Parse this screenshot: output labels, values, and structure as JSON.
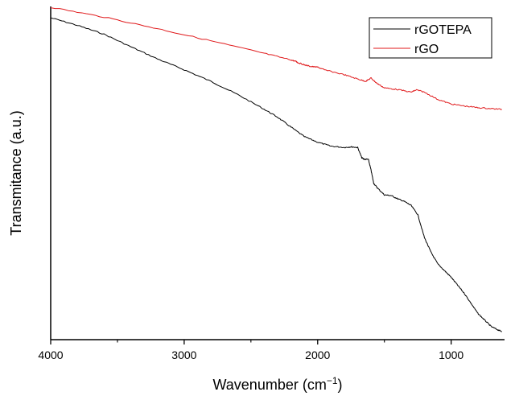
{
  "chart_data": {
    "type": "line",
    "title": "",
    "xlabel_text": "Wavenumber (cm",
    "xlabel_sup": "−1",
    "xlabel_close": ")",
    "ylabel": "Transmitance (a.u.)",
    "xlim": [
      4000,
      600
    ],
    "x_reversed": true,
    "y_ticks_shown": false,
    "ylim": [
      0,
      1
    ],
    "x_ticks": [
      {
        "value": 4000,
        "label": "4000"
      },
      {
        "value": 3000,
        "label": "3000"
      },
      {
        "value": 2000,
        "label": "2000"
      },
      {
        "value": 1000,
        "label": "1000"
      }
    ],
    "x_minor_ticks": [
      3500,
      2500,
      1500
    ],
    "grid": false,
    "legend": {
      "placement": "top-right"
    },
    "series": [
      {
        "name": "rGOTEPA",
        "color": "#000000",
        "points": [
          [
            4000,
            0.968
          ],
          [
            3800,
            0.945
          ],
          [
            3600,
            0.918
          ],
          [
            3400,
            0.88
          ],
          [
            3200,
            0.843
          ],
          [
            3000,
            0.81
          ],
          [
            2800,
            0.775
          ],
          [
            2600,
            0.735
          ],
          [
            2400,
            0.69
          ],
          [
            2300,
            0.666
          ],
          [
            2200,
            0.636
          ],
          [
            2100,
            0.607
          ],
          [
            2000,
            0.59
          ],
          [
            1900,
            0.578
          ],
          [
            1800,
            0.574
          ],
          [
            1750,
            0.576
          ],
          [
            1700,
            0.574
          ],
          [
            1670,
            0.543
          ],
          [
            1650,
            0.538
          ],
          [
            1620,
            0.538
          ],
          [
            1600,
            0.505
          ],
          [
            1580,
            0.465
          ],
          [
            1550,
            0.45
          ],
          [
            1500,
            0.43
          ],
          [
            1450,
            0.428
          ],
          [
            1400,
            0.418
          ],
          [
            1350,
            0.41
          ],
          [
            1300,
            0.398
          ],
          [
            1250,
            0.37
          ],
          [
            1200,
            0.3
          ],
          [
            1150,
            0.255
          ],
          [
            1100,
            0.22
          ],
          [
            1050,
            0.2
          ],
          [
            1000,
            0.18
          ],
          [
            950,
            0.155
          ],
          [
            900,
            0.13
          ],
          [
            850,
            0.1
          ],
          [
            800,
            0.07
          ],
          [
            750,
            0.05
          ],
          [
            700,
            0.03
          ],
          [
            650,
            0.02
          ],
          [
            620,
            0.015
          ]
        ]
      },
      {
        "name": "rGO",
        "color": "#e0191b",
        "points": [
          [
            4000,
            1.0
          ],
          [
            3600,
            0.97
          ],
          [
            3200,
            0.935
          ],
          [
            2800,
            0.898
          ],
          [
            2400,
            0.86
          ],
          [
            2200,
            0.84
          ],
          [
            2160,
            0.835
          ],
          [
            2150,
            0.832
          ],
          [
            2100,
            0.825
          ],
          [
            2050,
            0.82
          ],
          [
            2000,
            0.818
          ],
          [
            1950,
            0.81
          ],
          [
            1800,
            0.795
          ],
          [
            1700,
            0.782
          ],
          [
            1640,
            0.775
          ],
          [
            1600,
            0.785
          ],
          [
            1560,
            0.77
          ],
          [
            1500,
            0.755
          ],
          [
            1400,
            0.75
          ],
          [
            1300,
            0.742
          ],
          [
            1260,
            0.749
          ],
          [
            1200,
            0.742
          ],
          [
            1100,
            0.72
          ],
          [
            1000,
            0.706
          ],
          [
            900,
            0.7
          ],
          [
            800,
            0.695
          ],
          [
            700,
            0.692
          ],
          [
            620,
            0.69
          ]
        ]
      }
    ]
  }
}
